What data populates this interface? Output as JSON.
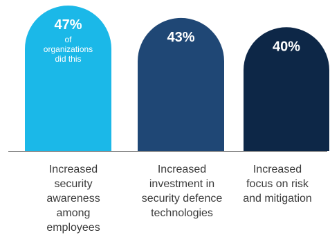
{
  "chart_data": {
    "type": "bar",
    "categories": [
      "Increased security awareness among employees",
      "Increased investment in security defence technologies",
      "Increased focus on risk and mitigation"
    ],
    "category_lines": [
      [
        "Increased",
        "security",
        "awareness",
        "among",
        "employees"
      ],
      [
        "Increased",
        "investment in",
        "security defence",
        "technologies"
      ],
      [
        "Increased",
        "focus on risk",
        "and mitigation"
      ]
    ],
    "values": [
      47,
      43,
      40
    ],
    "value_labels": [
      "47%",
      "43%",
      "40%"
    ],
    "annotation_lines": [
      "of",
      "organizations",
      "did this"
    ],
    "unit": "%",
    "colors": [
      "#1bb8e8",
      "#1f4775",
      "#0d2747"
    ],
    "axis_color": "#8a8a8a",
    "label_color": "#3a3a3a",
    "ylim": [
      0,
      47
    ],
    "grid": false
  }
}
